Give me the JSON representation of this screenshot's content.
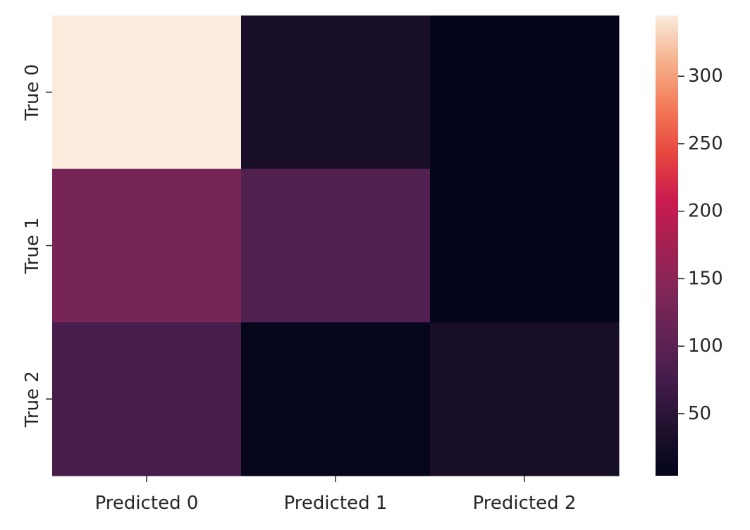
{
  "chart_data": {
    "type": "heatmap",
    "title": "",
    "xlabel": "",
    "ylabel": "",
    "x_categories": [
      "Predicted 0",
      "Predicted 1",
      "Predicted 2"
    ],
    "y_categories": [
      "True 0",
      "True 1",
      "True 2"
    ],
    "values": [
      [
        345,
        30,
        5
      ],
      [
        130,
        90,
        4
      ],
      [
        80,
        6,
        30
      ]
    ],
    "colorbar": {
      "min": 4,
      "max": 345,
      "ticks": [
        50,
        100,
        150,
        200,
        250,
        300
      ],
      "colormap": "rocket"
    },
    "grid": false,
    "legend": "colorbar-right"
  }
}
